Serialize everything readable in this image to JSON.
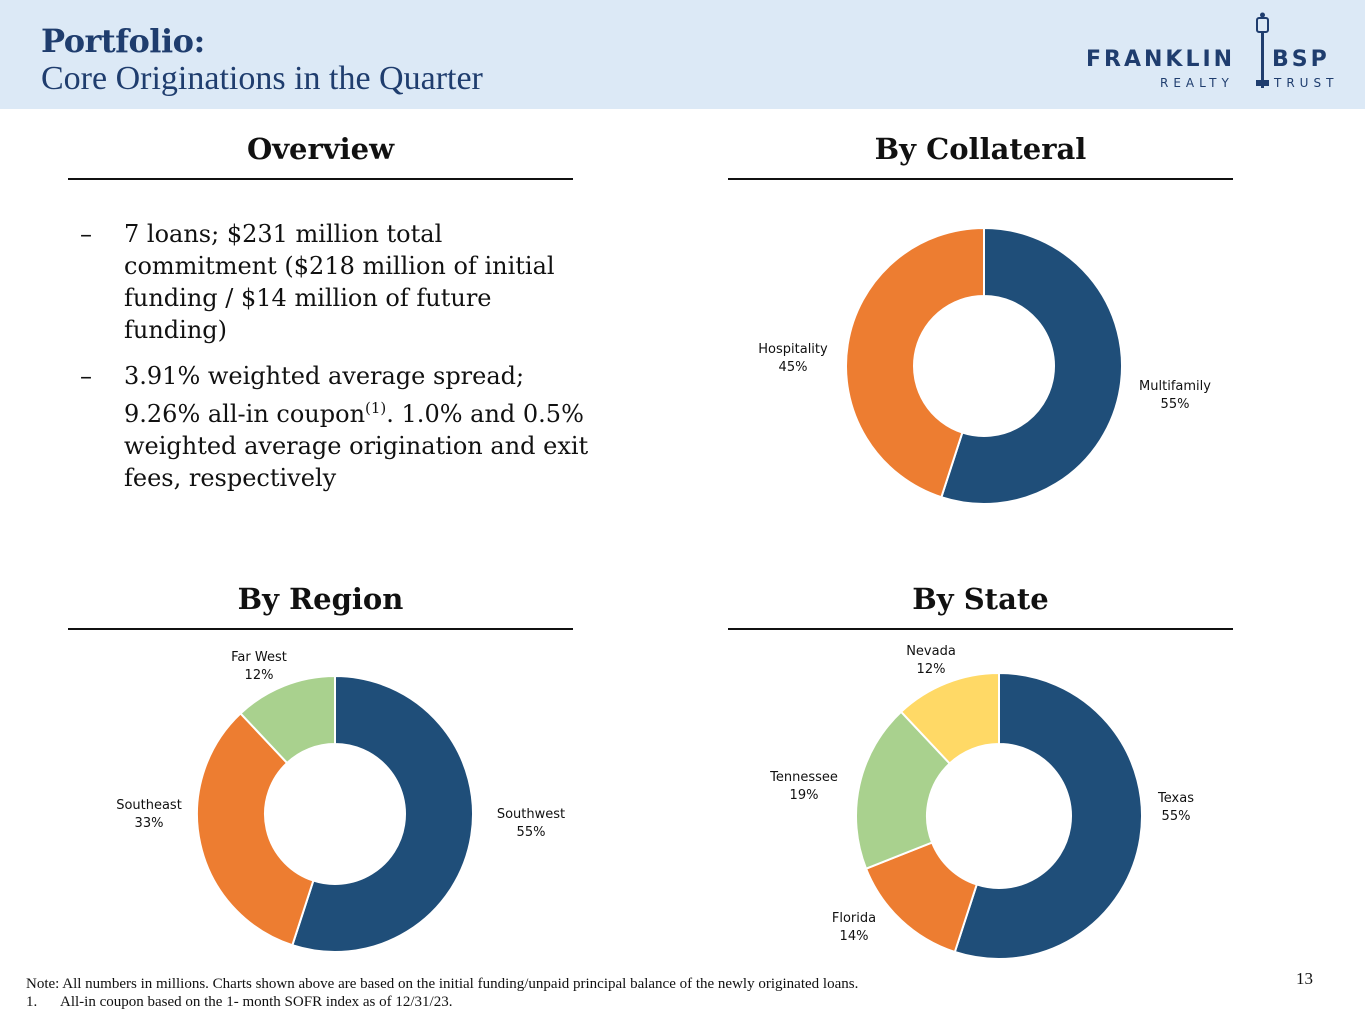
{
  "header": {
    "title": "Portfolio:",
    "subtitle": "Core Originations in the Quarter",
    "logo": {
      "name": "FRANKLIN",
      "name2": "BSP",
      "sub": "REALTY",
      "sub2": "TRUST"
    }
  },
  "sections": {
    "overview": "Overview",
    "collateral": "By Collateral",
    "region": "By Region",
    "state": "By State"
  },
  "overview": {
    "bullets": [
      {
        "dash": "–",
        "text": "7 loans; $231 million total commitment ($218 million of initial funding / $14 million of future funding)"
      },
      {
        "dash": "–",
        "text_before": "3.91% weighted average spread; 9.26% all-in coupon",
        "sup": "(1)",
        "text_after": ". 1.0% and 0.5% weighted average origination and exit fees, respectively"
      }
    ]
  },
  "colors": {
    "navy": "#1f4e79",
    "orange": "#ed7d31",
    "green": "#a9d18e",
    "yellow": "#ffd966",
    "header_bg": "#dce9f6",
    "title": "#1f3d6e"
  },
  "chart_data": [
    {
      "type": "pie",
      "title": "By Collateral",
      "categories": [
        "Multifamily",
        "Hospitality"
      ],
      "values": [
        55,
        45
      ],
      "labels": [
        "55%",
        "45%"
      ],
      "colors": [
        "#1f4e79",
        "#ed7d31"
      ]
    },
    {
      "type": "pie",
      "title": "By Region",
      "categories": [
        "Southwest",
        "Southeast",
        "Far West"
      ],
      "values": [
        55,
        33,
        12
      ],
      "labels": [
        "55%",
        "33%",
        "12%"
      ],
      "colors": [
        "#1f4e79",
        "#ed7d31",
        "#a9d18e"
      ]
    },
    {
      "type": "pie",
      "title": "By State",
      "categories": [
        "Texas",
        "Florida",
        "Tennessee",
        "Nevada"
      ],
      "values": [
        55,
        14,
        19,
        12
      ],
      "labels": [
        "55%",
        "14%",
        "19%",
        "12%"
      ],
      "colors": [
        "#1f4e79",
        "#ed7d31",
        "#a9d18e",
        "#ffd966"
      ]
    }
  ],
  "footer": {
    "note": "Note: All numbers in millions. Charts shown above are based on the initial funding/unpaid principal balance of the newly originated loans.",
    "footnote_num": "1.",
    "footnote_text": "All-in coupon based on the 1- month SOFR index as of 12/31/23.",
    "page_number": "13"
  }
}
